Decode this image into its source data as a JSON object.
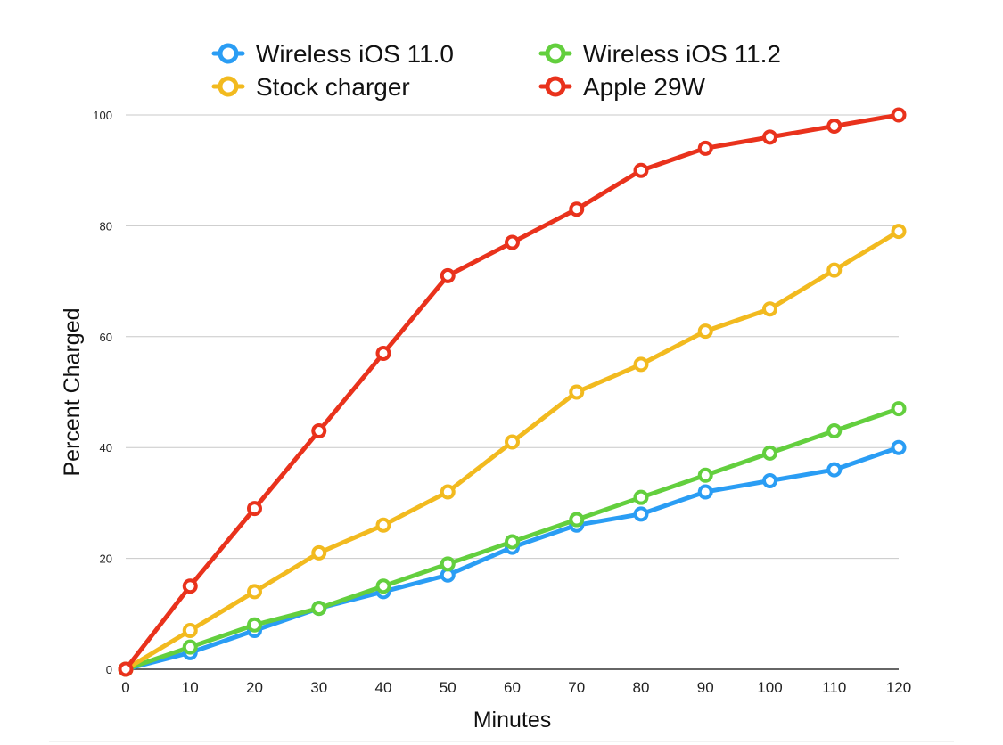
{
  "chart_data": {
    "type": "line",
    "title": "",
    "xlabel": "Minutes",
    "ylabel": "Percent Charged",
    "x": [
      0,
      10,
      20,
      30,
      40,
      50,
      60,
      70,
      80,
      90,
      100,
      110,
      120
    ],
    "xlim": [
      0,
      120
    ],
    "ylim": [
      0,
      100
    ],
    "x_ticks": [
      "0",
      "10",
      "20",
      "30",
      "40",
      "50",
      "60",
      "70",
      "80",
      "90",
      "100",
      "110",
      "120"
    ],
    "y_ticks": [
      "0",
      "20",
      "40",
      "60",
      "80",
      "100"
    ],
    "grid": "horizontal",
    "legend_position": "top",
    "series": [
      {
        "name": "Wireless iOS 11.0",
        "color": "#2A9DF4",
        "values": [
          0,
          3,
          7,
          11,
          14,
          17,
          22,
          26,
          28,
          32,
          34,
          36,
          40
        ]
      },
      {
        "name": "Wireless iOS 11.2",
        "color": "#63CF3E",
        "values": [
          0,
          4,
          8,
          11,
          15,
          19,
          23,
          27,
          31,
          35,
          39,
          43,
          47
        ]
      },
      {
        "name": "Stock charger",
        "color": "#F2BA1F",
        "values": [
          0,
          7,
          14,
          21,
          26,
          32,
          41,
          50,
          55,
          61,
          65,
          72,
          79
        ]
      },
      {
        "name": "Apple 29W",
        "color": "#E9321C",
        "values": [
          0,
          15,
          29,
          43,
          57,
          71,
          77,
          83,
          90,
          94,
          96,
          98,
          100
        ]
      }
    ]
  }
}
